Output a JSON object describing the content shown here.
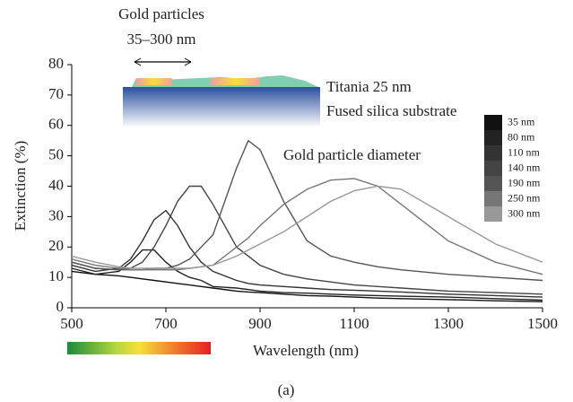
{
  "chart_data": {
    "type": "line",
    "inset_title": "Gold particles",
    "inset_subtitle": "35–300 nm",
    "inset_layer_1": "Titania 25 nm",
    "inset_layer_2": "Fused silica substrate",
    "legend_title": "Gold particle diameter",
    "xlabel": "Wavelength (nm)",
    "ylabel": "Extinction (%)",
    "caption": "(a)",
    "x": [
      500,
      550,
      600,
      625,
      650,
      675,
      700,
      725,
      750,
      775,
      800,
      850,
      875,
      900,
      950,
      1000,
      1050,
      1100,
      1150,
      1200,
      1300,
      1400,
      1500
    ],
    "xlim": [
      500,
      1500
    ],
    "xticks": [
      500,
      700,
      900,
      1100,
      1300,
      1500
    ],
    "ylim": [
      0,
      80
    ],
    "yticks": [
      0,
      10,
      20,
      30,
      40,
      50,
      60,
      70,
      80
    ],
    "series": [
      {
        "name": "35 nm",
        "color": "#111111",
        "values": [
          12,
          11,
          10.5,
          10,
          9.5,
          9,
          8.5,
          8,
          7.5,
          7,
          6.5,
          5.5,
          5.2,
          5,
          4.5,
          4,
          3.8,
          3.5,
          3.2,
          3,
          2.7,
          2.3,
          2
        ]
      },
      {
        "name": "80 nm",
        "color": "#222222",
        "values": [
          13,
          11,
          12,
          15,
          19,
          19,
          15,
          12,
          10,
          9,
          7,
          6.5,
          6,
          5.5,
          5,
          4.8,
          4.5,
          4.2,
          4,
          3.8,
          3.5,
          3,
          2.5
        ]
      },
      {
        "name": "110 nm",
        "color": "#333333",
        "values": [
          14,
          12,
          13,
          16,
          22,
          29,
          32,
          27,
          20,
          15,
          12,
          9,
          8,
          7.5,
          7,
          6.5,
          6,
          5.8,
          5.5,
          5.2,
          4.5,
          4,
          3.5
        ]
      },
      {
        "name": "140 nm",
        "color": "#444444",
        "values": [
          15,
          13,
          12.5,
          13,
          15,
          20,
          27,
          35,
          40,
          40,
          34,
          20,
          17,
          14,
          11,
          9.5,
          8.5,
          7.5,
          7,
          6.5,
          5.5,
          5,
          4.5
        ]
      },
      {
        "name": "190 nm",
        "color": "#555555",
        "values": [
          15,
          13,
          12.5,
          12.5,
          12.5,
          13,
          13,
          14,
          16,
          20,
          24,
          46,
          55,
          52,
          35,
          22,
          17,
          15,
          13.5,
          12.5,
          11,
          10,
          9
        ]
      },
      {
        "name": "250 nm",
        "color": "#777777",
        "values": [
          16,
          14,
          13,
          12.5,
          12.5,
          12.5,
          12.5,
          12.5,
          13,
          13.5,
          14,
          20,
          23,
          27,
          34,
          39,
          42,
          42.5,
          40,
          34,
          22,
          15,
          11
        ]
      },
      {
        "name": "300 nm",
        "color": "#999999",
        "values": [
          17,
          15,
          13.5,
          13,
          13,
          13,
          13,
          13,
          13,
          13.5,
          14,
          17,
          19,
          21,
          25,
          30,
          35,
          38.5,
          40,
          39,
          30,
          21,
          15
        ]
      }
    ]
  }
}
